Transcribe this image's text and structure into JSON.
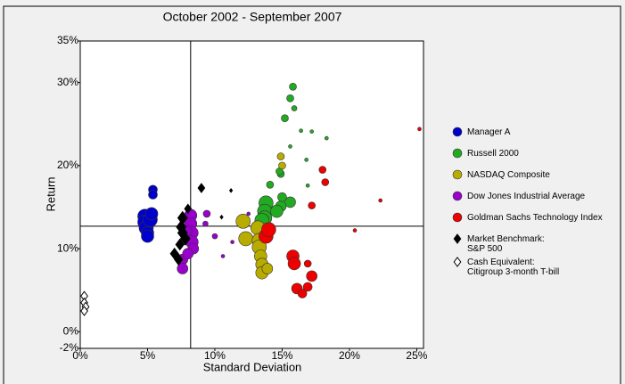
{
  "chart_data": {
    "type": "scatter",
    "title": "October 2002 - September 2007",
    "xlabel": "Standard Deviation",
    "ylabel": "Return",
    "xlim": [
      0,
      25.5
    ],
    "ylim": [
      -2,
      35
    ],
    "xticks": [
      {
        "value": 0,
        "label": "0%"
      },
      {
        "value": 5,
        "label": "5%"
      },
      {
        "value": 10,
        "label": "10%"
      },
      {
        "value": 15,
        "label": "15%"
      },
      {
        "value": 20,
        "label": "20%"
      },
      {
        "value": 25,
        "label": "25%"
      }
    ],
    "yticks": [
      {
        "value": -2,
        "label": "-2%"
      },
      {
        "value": 0,
        "label": "0%"
      },
      {
        "value": 10,
        "label": "10%"
      },
      {
        "value": 20,
        "label": "20%"
      },
      {
        "value": 30,
        "label": "30%"
      },
      {
        "value": 35,
        "label": "35%"
      }
    ],
    "reference_lines": {
      "x": 8.2,
      "y": 12.7
    },
    "legend": "right",
    "series": [
      {
        "name": "Manager A",
        "color": "#0000cc",
        "marker": "circle",
        "x": [
          5.4,
          5.4,
          4.8,
          4.8,
          4.9,
          5.0,
          5.0,
          5.2,
          5.3
        ],
        "values": [
          17.1,
          16.5,
          13.9,
          13.2,
          12.5,
          11.9,
          11.5,
          13.5,
          14.2
        ],
        "sizes": [
          5,
          5,
          8,
          8,
          8,
          7,
          7,
          8,
          7
        ]
      },
      {
        "name": "Russell 2000",
        "color": "#22aa22",
        "marker": "circle",
        "x": [
          15.8,
          15.6,
          15.9,
          15.2,
          16.4,
          17.2,
          18.3,
          15.6,
          16.8,
          14.9,
          14.8,
          16.9,
          14.1,
          15.6,
          14.9,
          13.8,
          13.7,
          13.7,
          13.5,
          14.6,
          15.0
        ],
        "values": [
          29.5,
          28.1,
          26.9,
          25.7,
          24.2,
          24.1,
          23.3,
          22.3,
          20.7,
          19.0,
          19.3,
          17.6,
          17.7,
          15.6,
          15.1,
          15.5,
          14.5,
          13.7,
          13.4,
          14.5,
          16.2
        ],
        "sizes": [
          4,
          4,
          3,
          4,
          2,
          2,
          2,
          2,
          2,
          4,
          4,
          2,
          4,
          6,
          6,
          8,
          8,
          8,
          8,
          7,
          5
        ]
      },
      {
        "name": "NASDAQ Composite",
        "color": "#b8ac00",
        "marker": "circle",
        "x": [
          12.1,
          12.3,
          13.2,
          13.3,
          13.3,
          13.4,
          13.5,
          13.5,
          13.9,
          14.9,
          15.0
        ],
        "values": [
          13.3,
          11.2,
          12.5,
          11.0,
          10.2,
          9.1,
          8.1,
          7.1,
          7.6,
          21.1,
          20.0
        ],
        "sizes": [
          8,
          8,
          8,
          8,
          8,
          7,
          7,
          7,
          6,
          4,
          4
        ]
      },
      {
        "name": "Dow Jones Industrial Average",
        "color": "#9900cc",
        "marker": "circle",
        "x": [
          7.6,
          7.6,
          8.2,
          8.2,
          8.3,
          8.3,
          8.4,
          8.0,
          9.4,
          9.3,
          10.0,
          10.6,
          11.3,
          12.5,
          7.9
        ],
        "values": [
          8.7,
          7.6,
          14.0,
          13.0,
          11.9,
          10.8,
          10.0,
          9.4,
          14.2,
          13.0,
          11.5,
          9.1,
          10.8,
          14.2,
          12.1
        ],
        "sizes": [
          6,
          6,
          7,
          7,
          7,
          7,
          6,
          6,
          4,
          3,
          3,
          2,
          2,
          2,
          6
        ]
      },
      {
        "name": "Goldman Sachs Technology Index",
        "color": "#ee0000",
        "marker": "circle",
        "x": [
          13.8,
          14.0,
          18.0,
          18.2,
          17.2,
          15.8,
          15.9,
          16.1,
          16.9,
          16.5,
          17.2,
          16.9,
          25.2,
          22.3,
          20.4
        ],
        "values": [
          11.5,
          12.3,
          19.5,
          18.0,
          15.2,
          9.1,
          8.2,
          5.2,
          5.4,
          4.6,
          6.7,
          8.2,
          24.4,
          15.8,
          12.2
        ],
        "sizes": [
          8,
          8,
          4,
          4,
          4,
          7,
          7,
          6,
          5,
          5,
          6,
          4,
          2,
          2,
          2
        ]
      },
      {
        "name": "Market Benchmark:\nS&P 500",
        "color": "#000000",
        "marker": "diamond",
        "x": [
          9.0,
          8.0,
          7.6,
          7.5,
          7.6,
          7.4,
          7.0,
          7.3,
          7.8,
          11.2,
          10.5
        ],
        "values": [
          17.3,
          14.8,
          13.7,
          12.6,
          11.9,
          10.5,
          9.4,
          8.7,
          11.2,
          17.0,
          13.8
        ],
        "sizes": [
          5,
          5,
          7,
          7,
          7,
          6,
          6,
          6,
          7,
          2,
          2
        ]
      },
      {
        "name": "Cash Equivalent:\nCitigroup 3-month T-bill",
        "color": "#ffffff",
        "marker": "diamond",
        "x": [
          0.3,
          0.3,
          0.4,
          0.3
        ],
        "values": [
          4.3,
          3.5,
          3.0,
          2.5
        ],
        "sizes": [
          5,
          5,
          5,
          5
        ]
      }
    ]
  }
}
